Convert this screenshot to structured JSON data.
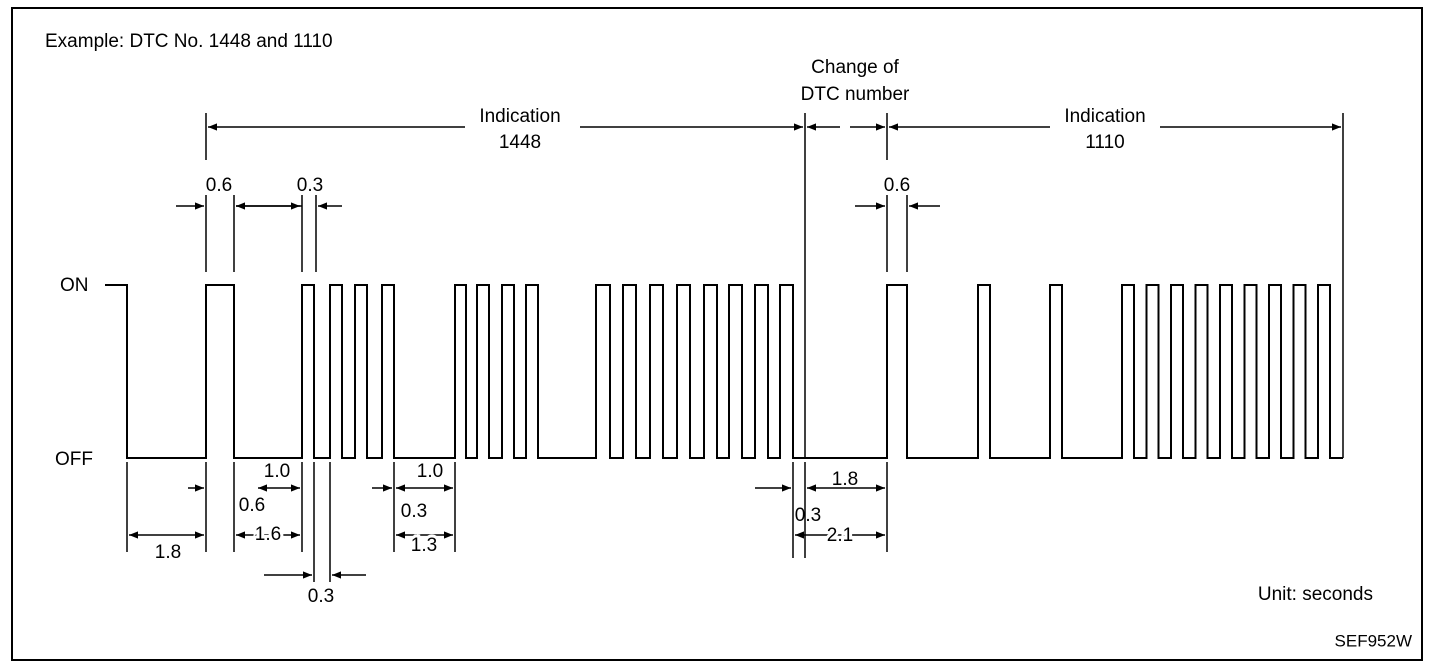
{
  "title": "Example: DTC No. 1448 and 1110",
  "change_label": [
    "Change of",
    "DTC number"
  ],
  "indications": [
    {
      "label": "Indication",
      "code": "1448"
    },
    {
      "label": "Indication",
      "code": "1110"
    }
  ],
  "states": [
    "ON",
    "OFF"
  ],
  "dimensions": [
    "0.6",
    "0.3",
    "0.6",
    "1.0",
    "0.6",
    "1.6",
    "1.8",
    "0.3",
    "1.0",
    "0.3",
    "1.3",
    "1.8",
    "0.3",
    "2.1"
  ],
  "unit": "Unit: seconds",
  "figure_id": "SEF952W"
}
